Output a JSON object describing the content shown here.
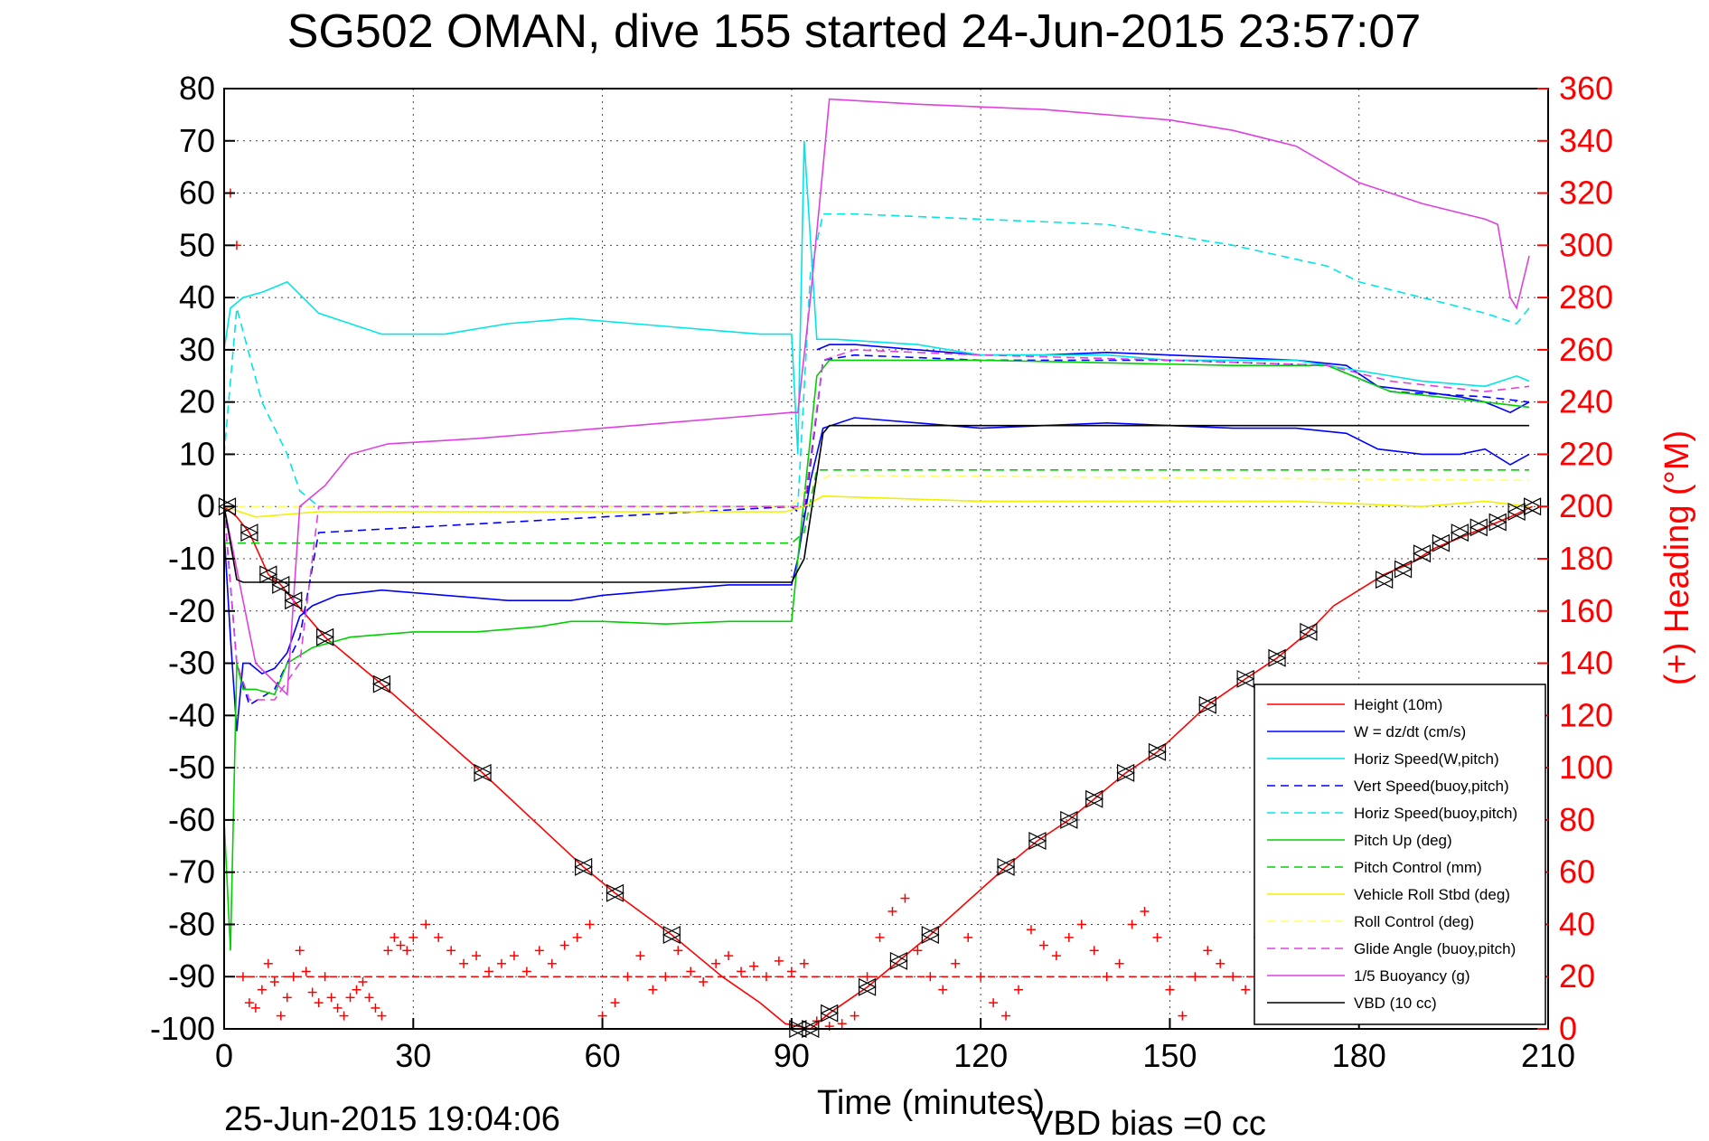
{
  "chart_data": {
    "type": "line",
    "title": "SG502 OMAN, dive 155 started 24-Jun-2015 23:57:07",
    "xlabel": "Time (minutes)",
    "ylabel_right": "(+) Heading (°M)",
    "footer_left": "25-Jun-2015 19:04:06",
    "footer_right": "VBD bias =0 cc",
    "xlim": [
      0,
      210
    ],
    "ylim_left": [
      -100,
      80
    ],
    "ylim_right": [
      0,
      360
    ],
    "xticks": [
      "0",
      "30",
      "60",
      "90",
      "120",
      "150",
      "180",
      "210"
    ],
    "yticks_left": [
      "80",
      "70",
      "60",
      "50",
      "40",
      "30",
      "20",
      "10",
      "0",
      "-10",
      "-20",
      "-30",
      "-40",
      "-50",
      "-60",
      "-70",
      "-80",
      "-90",
      "-100"
    ],
    "yticks_right": [
      "360",
      "340",
      "320",
      "300",
      "280",
      "260",
      "240",
      "220",
      "200",
      "180",
      "160",
      "140",
      "120",
      "100",
      "80",
      "60",
      "40",
      "20",
      "0"
    ],
    "grid": true,
    "legend_position": "bottom-right",
    "series": [
      {
        "name": "Height (10m)",
        "color": "#ff0000",
        "style": "solid",
        "x": [
          0,
          2,
          4,
          7,
          9,
          11,
          16,
          25,
          41,
          57,
          62,
          71,
          79,
          85,
          89,
          93,
          96,
          102,
          107,
          112,
          124,
          129,
          134,
          138,
          143,
          148,
          156,
          162,
          167,
          172,
          176,
          180,
          184,
          188,
          192,
          196,
          200,
          204,
          207.5
        ],
        "y": [
          0,
          -2,
          -5,
          -13,
          -15,
          -18,
          -25,
          -34,
          -51,
          -69,
          -74,
          -82,
          -90,
          -95,
          -99,
          -100,
          -97,
          -92,
          -87,
          -82,
          -69,
          -64,
          -60,
          -56,
          -51,
          -47,
          -38,
          -33,
          -29,
          -24,
          -19,
          -16,
          -13,
          -11,
          -8,
          -6,
          -4,
          -2,
          0
        ]
      },
      {
        "name": "W = dz/dt (cm/s)",
        "color": "#0000ff",
        "style": "solid",
        "x": [
          0,
          1,
          2,
          3,
          4,
          6,
          8,
          10,
          12,
          14,
          18,
          25,
          35,
          45,
          55,
          60,
          70,
          80,
          90,
          91,
          93,
          95,
          100,
          110,
          120,
          130,
          140,
          150,
          160,
          170,
          178,
          183,
          190,
          196,
          200,
          204,
          207
        ],
        "y": [
          -5,
          -25,
          -43,
          -30,
          -30,
          -32,
          -31,
          -28,
          -21,
          -19,
          -17,
          -16,
          -17,
          -18,
          -18,
          -17,
          -16,
          -15,
          -15,
          -10,
          5,
          15,
          17,
          16,
          15,
          15.5,
          16,
          15.5,
          15,
          15,
          14,
          11,
          10,
          10,
          11,
          8,
          10
        ]
      },
      {
        "name": "W = dz/dt (cm/s)",
        "color": "#0000ff",
        "style": "solid",
        "legend": false,
        "x": [
          94,
          96,
          100,
          110,
          120,
          130,
          140,
          150,
          160,
          170,
          178,
          183,
          190,
          196,
          200,
          204,
          207
        ],
        "y": [
          30,
          31,
          31,
          30,
          29,
          29,
          29.5,
          29,
          28.5,
          28,
          27,
          23,
          22,
          21,
          20,
          18,
          20
        ]
      },
      {
        "name": "Horiz Speed(W,pitch)",
        "color": "#00e5e5",
        "style": "solid",
        "x": [
          0,
          1,
          3,
          6,
          10,
          15,
          25,
          35,
          45,
          55,
          65,
          75,
          85,
          90,
          91,
          92,
          94,
          97,
          110,
          120,
          130,
          140,
          150,
          160,
          170,
          180,
          190,
          200,
          205,
          207
        ],
        "y": [
          30,
          38,
          40,
          41,
          43,
          37,
          33,
          33,
          35,
          36,
          35,
          34,
          33,
          33,
          10,
          70,
          32,
          32,
          31,
          29,
          29,
          29,
          28,
          28,
          28,
          26,
          24,
          23,
          25,
          24
        ]
      },
      {
        "name": "Vert Speed(buoy,pitch)",
        "color": "#0000ff",
        "style": "dashed",
        "x": [
          0,
          2,
          4,
          8,
          12,
          15,
          90,
          92,
          95,
          100,
          120,
          150,
          175,
          185,
          200,
          207
        ],
        "y": [
          0,
          -30,
          -38,
          -35,
          -25,
          -5,
          0,
          -2,
          28,
          29,
          28,
          28,
          27,
          22,
          21,
          20
        ]
      },
      {
        "name": "Horiz Speed(buoy,pitch)",
        "color": "#00e5e5",
        "style": "dashed",
        "x": [
          0,
          2,
          6,
          10,
          12,
          15,
          90,
          91,
          93,
          95,
          100,
          120,
          140,
          150,
          160,
          175,
          180,
          190,
          200,
          205,
          207
        ],
        "y": [
          10,
          38,
          20,
          10,
          3,
          0,
          0,
          0,
          45,
          56,
          56,
          55,
          54,
          52,
          50,
          46,
          43,
          40,
          37,
          35,
          38
        ]
      },
      {
        "name": "Pitch Up (deg)",
        "color": "#00d000",
        "style": "solid",
        "x": [
          0,
          1,
          2,
          3,
          5,
          8,
          10,
          14,
          20,
          30,
          40,
          50,
          55,
          60,
          70,
          80,
          90,
          91,
          94,
          96,
          100,
          120,
          140,
          160,
          175,
          185,
          200,
          207
        ],
        "y": [
          -60,
          -85,
          -30,
          -35,
          -35,
          -36,
          -30,
          -27,
          -25,
          -24,
          -24,
          -23,
          -22,
          -22,
          -22.5,
          -22,
          -22,
          -10,
          25,
          28,
          28,
          28,
          27.5,
          27,
          27,
          22,
          20,
          19
        ]
      },
      {
        "name": "Pitch Control (mm)",
        "color": "#00d000",
        "style": "dashed",
        "x": [
          0,
          3,
          4,
          15,
          90,
          92,
          94,
          150,
          207
        ],
        "y": [
          -7,
          -7,
          -7,
          -7,
          -7,
          -5,
          7,
          7,
          7
        ]
      },
      {
        "name": "Vehicle Roll Stbd (deg)",
        "color": "#f0f000",
        "style": "solid",
        "x": [
          0,
          5,
          15,
          30,
          50,
          70,
          89,
          92,
          95,
          120,
          150,
          170,
          190,
          200,
          207
        ],
        "y": [
          0,
          -2,
          -1,
          -1,
          -1,
          -1,
          -1,
          0,
          2,
          1,
          1,
          1,
          0,
          1,
          0
        ]
      },
      {
        "name": "Roll Control (deg)",
        "color": "#ffff66",
        "style": "dashed",
        "x": [
          0,
          90,
          92,
          96,
          207
        ],
        "y": [
          0,
          0,
          3,
          6,
          5
        ]
      },
      {
        "name": "Glide Angle (buoy,pitch)",
        "color": "#e040e0",
        "style": "dashed",
        "x": [
          0,
          2,
          4,
          8,
          12,
          15,
          90,
          92,
          95,
          100,
          120,
          150,
          175,
          185,
          200,
          207
        ],
        "y": [
          0,
          -30,
          -37,
          -37,
          -30,
          0,
          0,
          0,
          28,
          30,
          29,
          28,
          27,
          24,
          22,
          23
        ]
      },
      {
        "name": "1/5 Buoyancy (g)",
        "color": "#e040e0",
        "style": "solid",
        "x": [
          0,
          5,
          10,
          12,
          16,
          20,
          26,
          40,
          60,
          80,
          90,
          91,
          93,
          95,
          96,
          110,
          130,
          150,
          160,
          170,
          180,
          190,
          200,
          202,
          204,
          205,
          207
        ],
        "y": [
          0,
          -30,
          -36,
          0,
          4,
          10,
          12,
          13,
          15,
          17,
          18,
          18,
          40,
          65,
          78,
          77,
          76,
          74,
          72,
          69,
          62,
          58,
          55,
          54,
          40,
          38,
          48
        ]
      },
      {
        "name": "VBD (10 cc)",
        "color": "#000000",
        "style": "solid",
        "x": [
          0,
          2,
          3,
          10,
          40,
          60,
          90,
          92,
          95,
          96,
          100,
          150,
          200,
          205,
          207
        ],
        "y": [
          0,
          -14,
          -14.5,
          -14.5,
          -14.5,
          -14.5,
          -14.5,
          -10,
          14,
          15.5,
          15.5,
          15.5,
          15.5,
          15.5,
          15.5
        ]
      }
    ],
    "heading_points": {
      "name": "Heading",
      "color": "#ff0000",
      "marker": "+",
      "axis": "right",
      "x": [
        1,
        2,
        3,
        4,
        5,
        6,
        7,
        8,
        9,
        10,
        11,
        12,
        13,
        14,
        15,
        16,
        17,
        18,
        19,
        20,
        21,
        22,
        23,
        24,
        25,
        26,
        27,
        28,
        29,
        30,
        32,
        34,
        36,
        38,
        40,
        42,
        44,
        46,
        48,
        50,
        52,
        54,
        56,
        58,
        60,
        62,
        64,
        66,
        68,
        70,
        72,
        74,
        76,
        78,
        80,
        82,
        84,
        86,
        88,
        90,
        92,
        94,
        96,
        98,
        100,
        102,
        104,
        106,
        108,
        110,
        112,
        114,
        116,
        118,
        120,
        122,
        124,
        126,
        128,
        130,
        132,
        134,
        136,
        138,
        140,
        142,
        144,
        146,
        148,
        150,
        152,
        154,
        156,
        158,
        160,
        162,
        164,
        166,
        168,
        170,
        172,
        174,
        176,
        178,
        180,
        182,
        184,
        186,
        188,
        190,
        192,
        194,
        196,
        198,
        200,
        202,
        204,
        206
      ],
      "y": [
        320,
        300,
        20,
        10,
        8,
        15,
        25,
        18,
        5,
        12,
        20,
        30,
        22,
        14,
        10,
        20,
        12,
        8,
        5,
        12,
        15,
        18,
        12,
        8,
        5,
        30,
        35,
        32,
        30,
        35,
        40,
        35,
        30,
        25,
        28,
        22,
        25,
        28,
        22,
        30,
        25,
        32,
        35,
        40,
        5,
        10,
        20,
        28,
        15,
        20,
        30,
        22,
        18,
        25,
        28,
        22,
        24,
        20,
        26,
        22,
        25,
        3,
        1,
        2,
        5,
        20,
        35,
        45,
        50,
        30,
        20,
        15,
        25,
        35,
        20,
        10,
        5,
        15,
        38,
        32,
        28,
        35,
        40,
        30,
        20,
        25,
        40,
        45,
        35,
        15,
        5,
        20,
        30,
        25,
        20,
        15,
        35,
        38,
        30,
        28,
        25,
        30,
        20,
        18,
        24,
        35,
        40,
        42,
        35,
        30,
        25,
        22,
        28,
        30,
        35,
        25,
        22,
        18
      ]
    },
    "triangle_markers": {
      "x": [
        0.5,
        4,
        7,
        9,
        11,
        16,
        25,
        41,
        57,
        62,
        71,
        91,
        93,
        96,
        102,
        107,
        112,
        124,
        129,
        134,
        138,
        143,
        148,
        156,
        162,
        167,
        172,
        184,
        187,
        190,
        193,
        196,
        199,
        202,
        205,
        207.5
      ],
      "y": [
        0,
        -5,
        -13,
        -15,
        -18,
        -25,
        -34,
        -51,
        -69,
        -74,
        -82,
        -100,
        -100,
        -97,
        -92,
        -87,
        -82,
        -69,
        -64,
        -60,
        -56,
        -51,
        -47,
        -38,
        -33,
        -29,
        -24,
        -14,
        -12,
        -9,
        -7,
        -5,
        -4,
        -3,
        -1,
        0
      ]
    },
    "reference_line": {
      "name": "Heading ref",
      "y_right": 20,
      "color": "#ff0000",
      "style": "dashed"
    }
  }
}
